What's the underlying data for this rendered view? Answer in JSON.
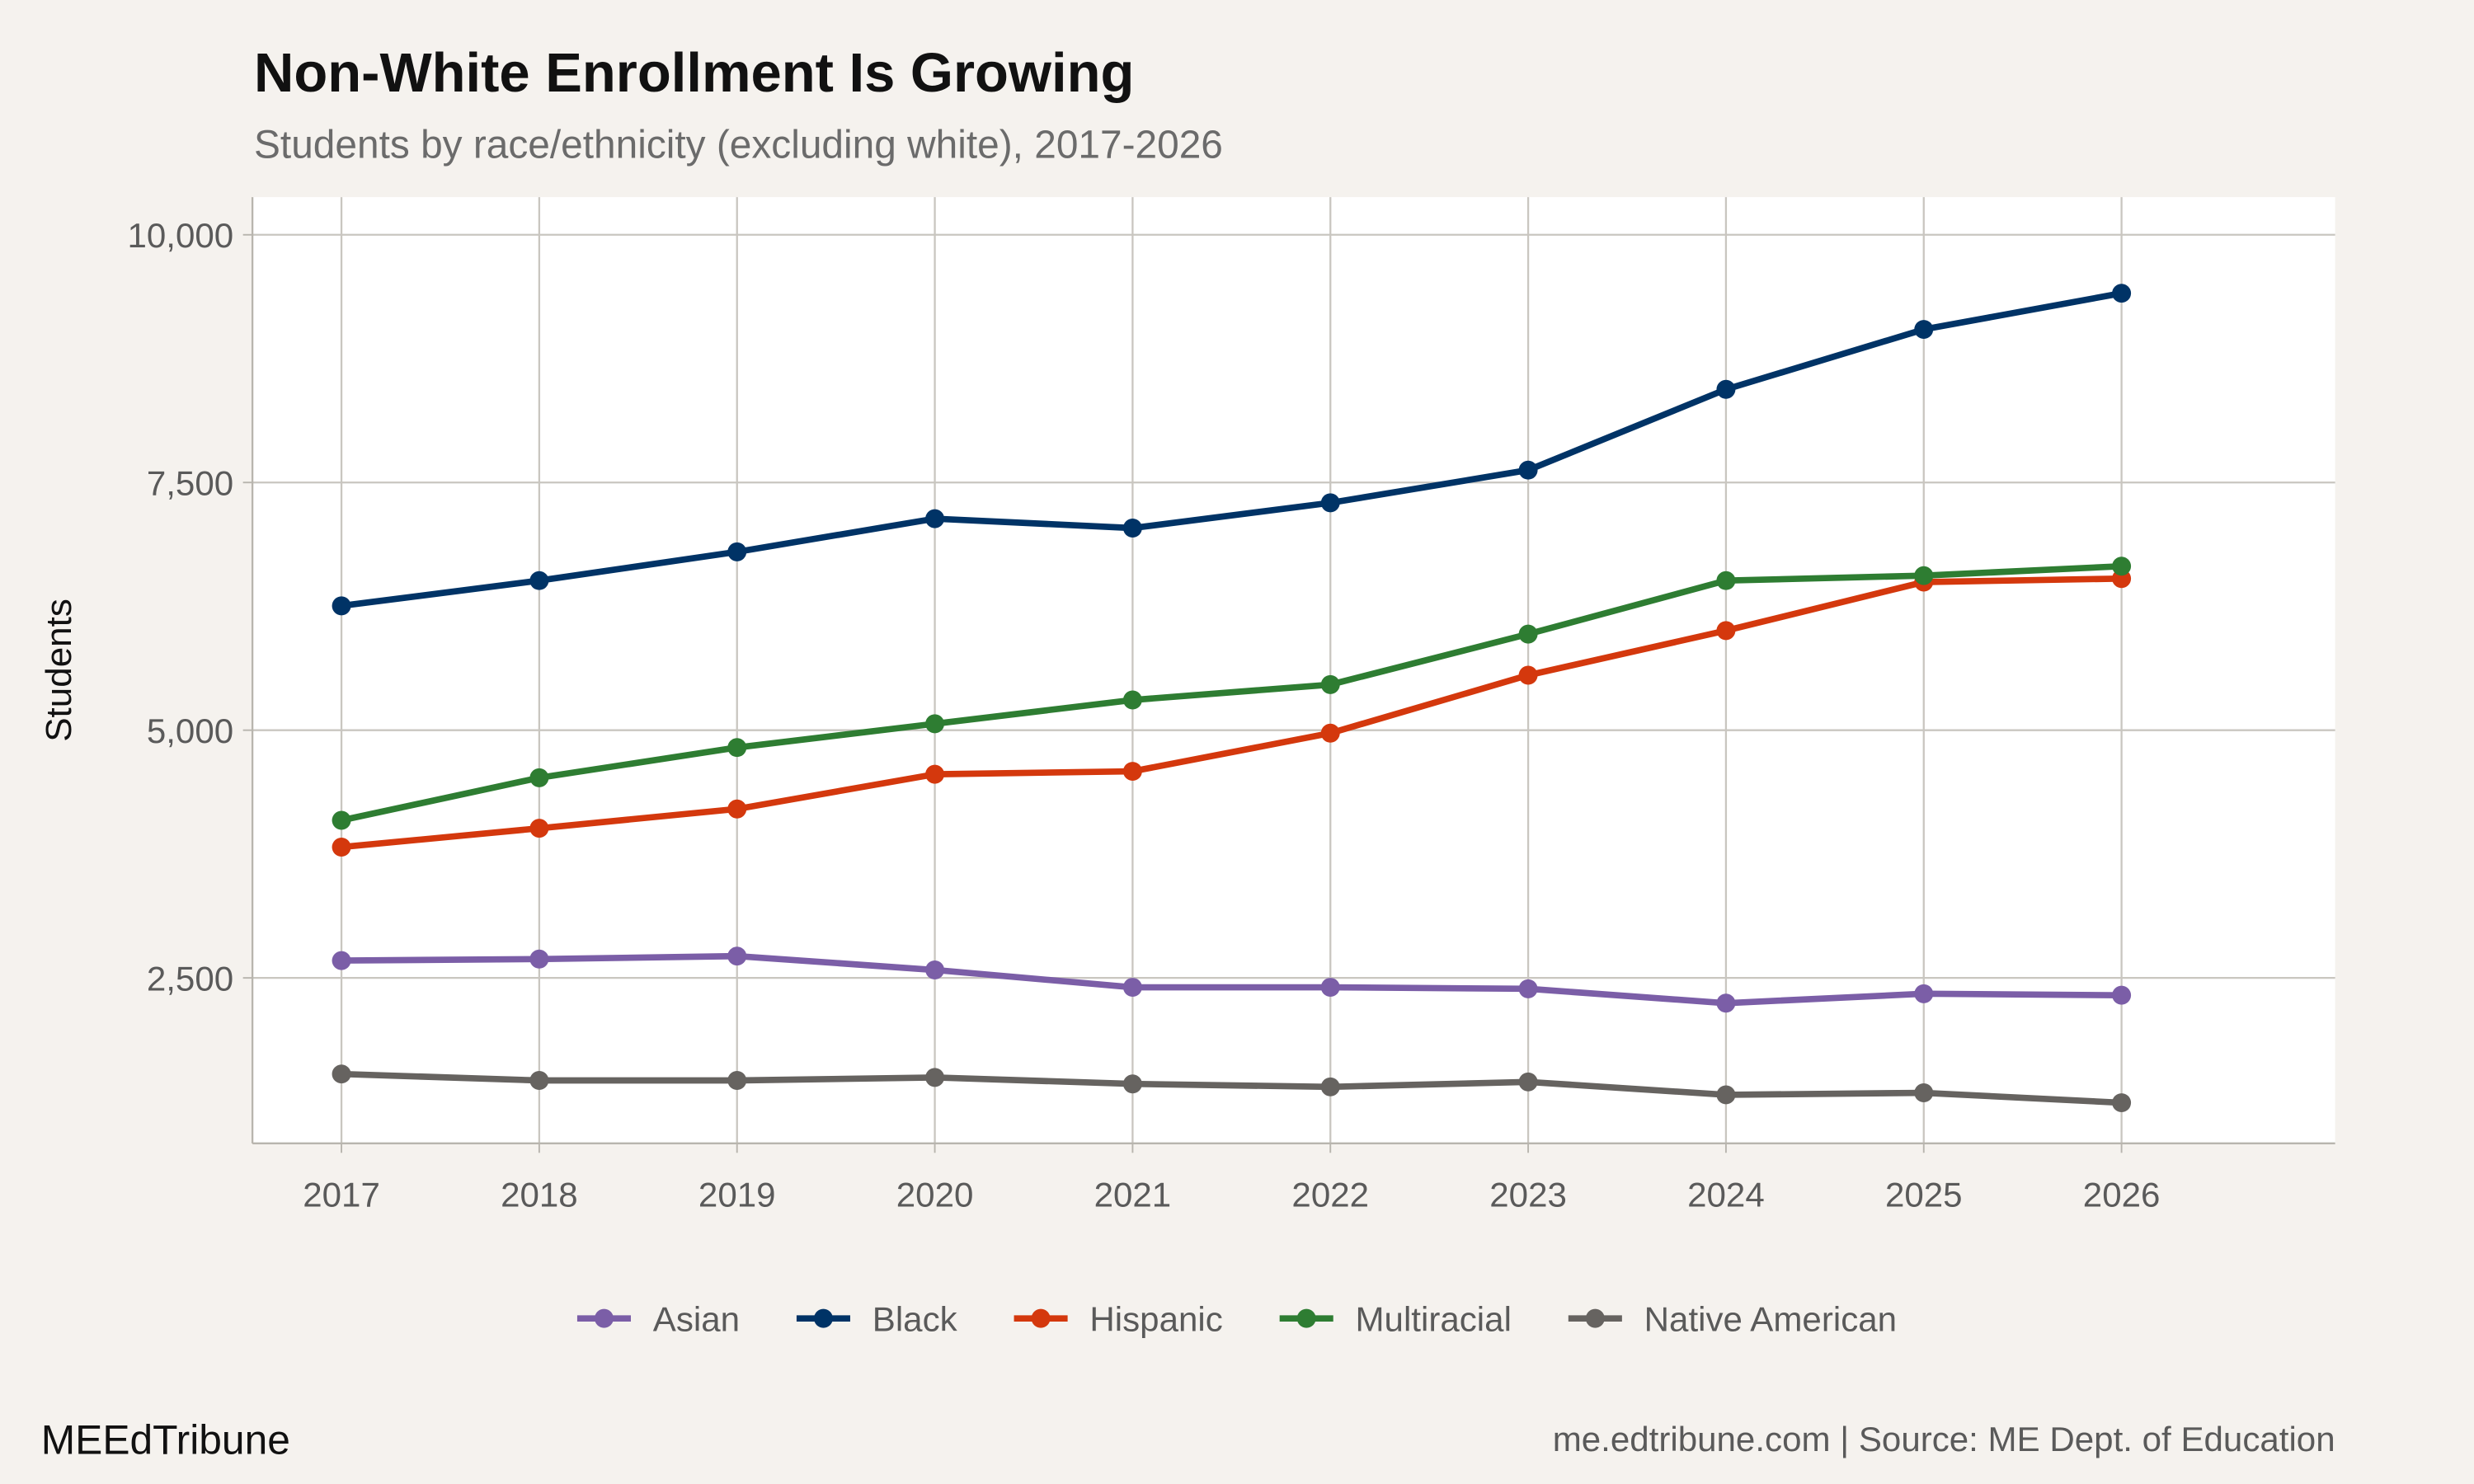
{
  "colors": {
    "background": "#F5F2EE",
    "panel": "#FFFFFF",
    "grid": "#C9C6C0"
  },
  "footer": {
    "brand": "MEEdTribune",
    "caption": "me.edtribune.com | Source: ME Dept. of Education"
  },
  "chart_data": {
    "type": "line",
    "title": "Non-White Enrollment Is Growing",
    "subtitle": "Students by race/ethnicity (excluding white), 2017-2026",
    "xlabel": "",
    "ylabel": "Students",
    "x": [
      2017,
      2018,
      2019,
      2020,
      2021,
      2022,
      2023,
      2024,
      2025,
      2026
    ],
    "xticks": [
      "2017",
      "2018",
      "2019",
      "2020",
      "2021",
      "2022",
      "2023",
      "2024",
      "2025",
      "2026"
    ],
    "yticks": [
      2500,
      5000,
      7500,
      10000
    ],
    "ytick_labels": [
      "2,500",
      "5,000",
      "7,500",
      "10,000"
    ],
    "xlim": [
      2016.55,
      2027.08
    ],
    "ylim": [
      830,
      10380
    ],
    "grid": true,
    "legend_position": "bottom",
    "series": [
      {
        "name": "Asian",
        "color": "#7B5EA7",
        "values": [
          2675,
          2690,
          2720,
          2580,
          2405,
          2405,
          2390,
          2245,
          2340,
          2325
        ]
      },
      {
        "name": "Black",
        "color": "#003366",
        "values": [
          6255,
          6510,
          6800,
          7135,
          7040,
          7295,
          7625,
          8440,
          9045,
          9410
        ]
      },
      {
        "name": "Hispanic",
        "color": "#D4380D",
        "values": [
          3820,
          4010,
          4205,
          4555,
          4585,
          4970,
          5555,
          6005,
          6495,
          6530
        ]
      },
      {
        "name": "Multiracial",
        "color": "#2E7D32",
        "values": [
          4090,
          4520,
          4825,
          5065,
          5305,
          5460,
          5970,
          6510,
          6560,
          6655
        ]
      },
      {
        "name": "Native American",
        "color": "#666360",
        "values": [
          1530,
          1465,
          1465,
          1495,
          1430,
          1400,
          1450,
          1320,
          1340,
          1240
        ]
      }
    ]
  }
}
